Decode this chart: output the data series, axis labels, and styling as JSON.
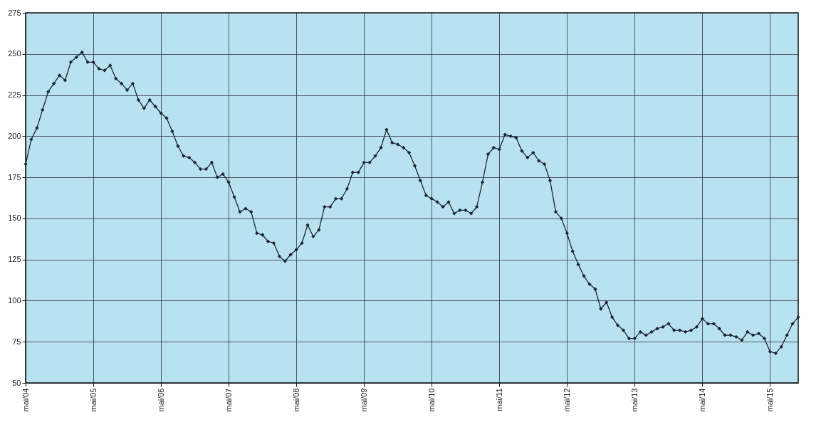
{
  "chart_data": {
    "type": "line",
    "categories": [
      "mai/04",
      null,
      null,
      null,
      null,
      null,
      null,
      null,
      null,
      null,
      null,
      null,
      "mai/05",
      null,
      null,
      null,
      null,
      null,
      null,
      null,
      null,
      null,
      null,
      null,
      "mai/06",
      null,
      null,
      null,
      null,
      null,
      null,
      null,
      null,
      null,
      null,
      null,
      "mai/07",
      null,
      null,
      null,
      null,
      null,
      null,
      null,
      null,
      null,
      null,
      null,
      "mai/08",
      null,
      null,
      null,
      null,
      null,
      null,
      null,
      null,
      null,
      null,
      null,
      "mai/09",
      null,
      null,
      null,
      null,
      null,
      null,
      null,
      null,
      null,
      null,
      null,
      "mai/10",
      null,
      null,
      null,
      null,
      null,
      null,
      null,
      null,
      null,
      null,
      null,
      "mai/11",
      null,
      null,
      null,
      null,
      null,
      null,
      null,
      null,
      null,
      null,
      null,
      "mai/12",
      null,
      null,
      null,
      null,
      null,
      null,
      null,
      null,
      null,
      null,
      null,
      "mai/13",
      null,
      null,
      null,
      null,
      null,
      null,
      null,
      null,
      null,
      null,
      null,
      "mai/14",
      null,
      null,
      null,
      null,
      null,
      null,
      null,
      null,
      null,
      null,
      null,
      "mai/15",
      null,
      null,
      null,
      null,
      null
    ],
    "series": [
      {
        "color": "#1c2430",
        "values": [
          183,
          198,
          205,
          216,
          227,
          232,
          237,
          234,
          245,
          248,
          251,
          245,
          245,
          241,
          240,
          243,
          235,
          232,
          228,
          232,
          222,
          217,
          222,
          218,
          214,
          211,
          203,
          194,
          188,
          187,
          184,
          180,
          180,
          184,
          175,
          177,
          172,
          163,
          154,
          156,
          154,
          141,
          140,
          136,
          135,
          127,
          124,
          128,
          131,
          135,
          146,
          139,
          143,
          157,
          157,
          162,
          162,
          168,
          178,
          178,
          184,
          184,
          188,
          193,
          204,
          196,
          195,
          193,
          190,
          182,
          173,
          164,
          162,
          160,
          157,
          160,
          153,
          155,
          155,
          153,
          157,
          172,
          189,
          193,
          192,
          201,
          200,
          199,
          191,
          187,
          190,
          185,
          183,
          173,
          154,
          150,
          141,
          130,
          122,
          115,
          110,
          107,
          95,
          99,
          90,
          85,
          82,
          77,
          77,
          81,
          79,
          81,
          83,
          84,
          86,
          82,
          82,
          81,
          82,
          84,
          89,
          86,
          86,
          83,
          79,
          79,
          78,
          76,
          81,
          79,
          80,
          77,
          69,
          68,
          72,
          79,
          86,
          90
        ]
      }
    ],
    "ylim": [
      50,
      275
    ],
    "yticks": [
      50,
      75,
      100,
      125,
      150,
      175,
      200,
      225,
      250,
      275
    ],
    "grid": true,
    "marker": "diamond",
    "line_style": "solid"
  }
}
